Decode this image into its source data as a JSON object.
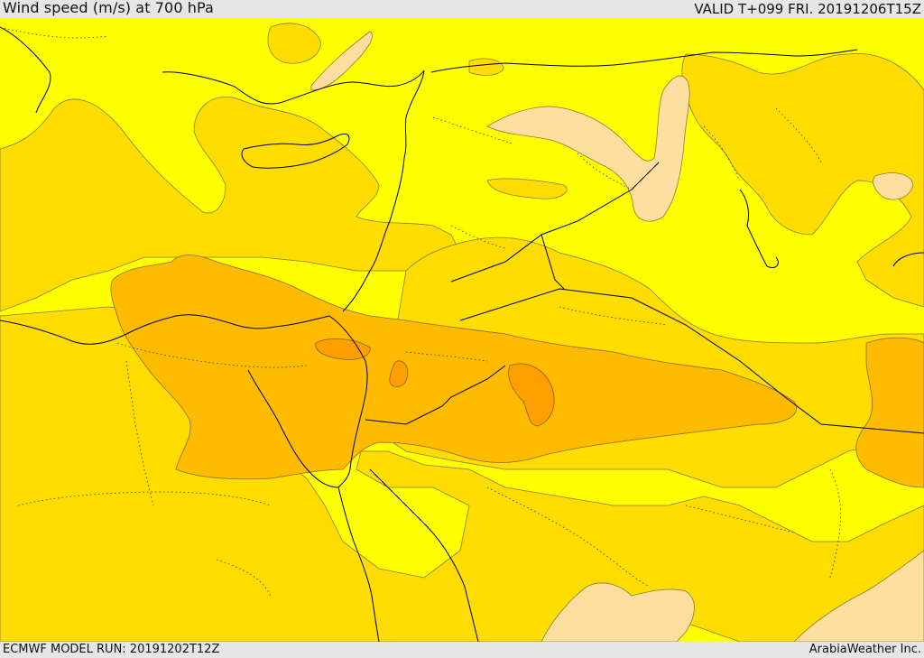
{
  "header": {
    "title": "Wind speed (m/s) at 700 hPa",
    "valid": "VALID T+099 FRI. 20191206T15Z"
  },
  "footer": {
    "model_run": "ECMWF MODEL RUN: 20191202T12Z",
    "credit": "ArabiaWeather Inc."
  },
  "map": {
    "colors": {
      "band_lowest": "#ffff00",
      "band_low": "#ffdd00",
      "band_mid": "#ffbb00",
      "band_high": "#ff9f00",
      "band_calm": "#ffdfa0",
      "coastline": "#000000",
      "contour": "#7a6a30"
    }
  }
}
